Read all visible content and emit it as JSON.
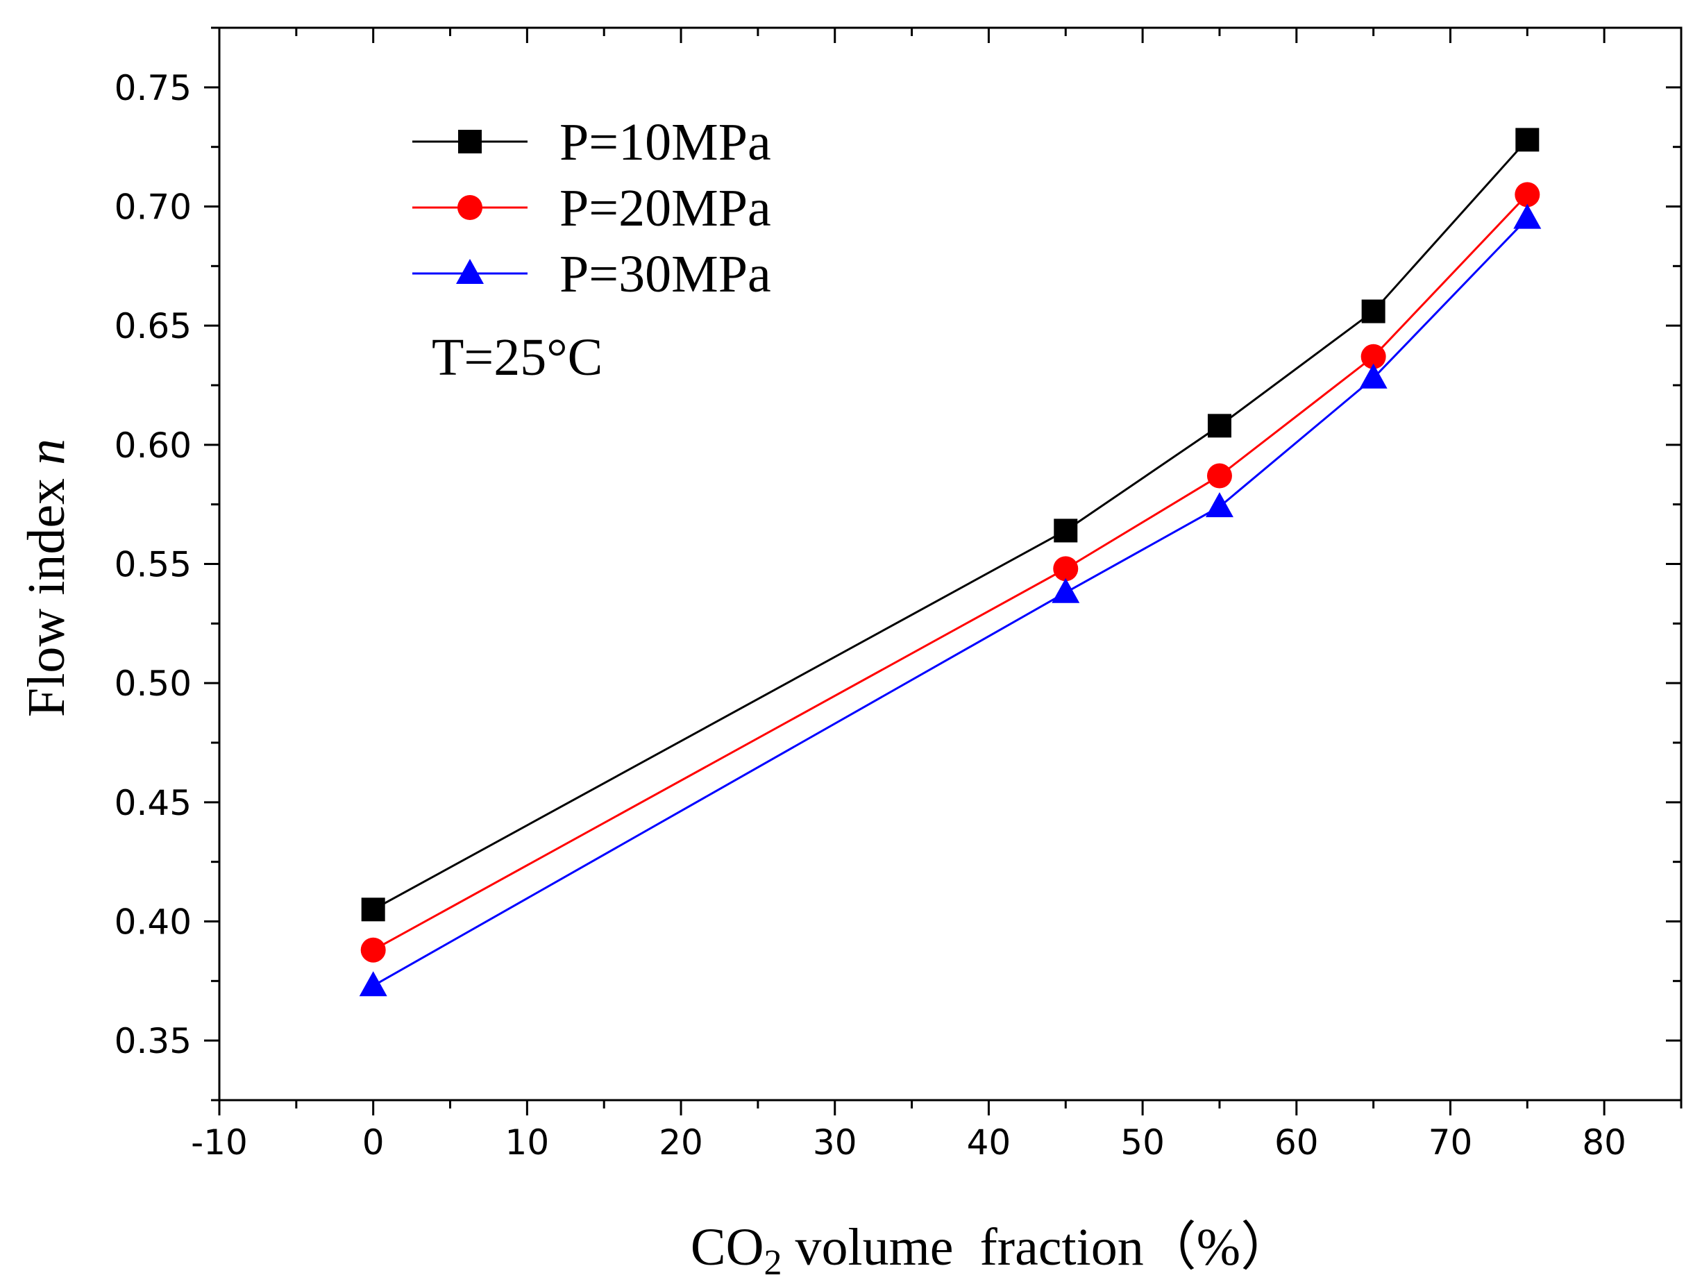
{
  "chart_data": {
    "type": "line",
    "title": "",
    "xlabel": {
      "prefix": "CO",
      "subscript": "2",
      "suffix": " volume  fraction",
      "unit": "（%）"
    },
    "ylabel": {
      "text": "Flow index ",
      "var": "n"
    },
    "xlim": [
      -10,
      85
    ],
    "ylim": [
      0.325,
      0.775
    ],
    "x_ticks": [
      -10,
      0,
      10,
      20,
      30,
      40,
      50,
      60,
      70,
      80
    ],
    "x_tick_labels": [
      "-10",
      "0",
      "10",
      "20",
      "30",
      "40",
      "50",
      "60",
      "70",
      "80"
    ],
    "y_ticks": [
      0.35,
      0.4,
      0.45,
      0.5,
      0.55,
      0.6,
      0.65,
      0.7,
      0.75
    ],
    "y_tick_labels": [
      "0.35",
      "0.40",
      "0.45",
      "0.50",
      "0.55",
      "0.60",
      "0.65",
      "0.70",
      "0.75"
    ],
    "grid": false,
    "legend_position": "top-left",
    "x": [
      0,
      45,
      55,
      65,
      75
    ],
    "series": [
      {
        "name": "P=10MPa",
        "marker": "square",
        "color": "#000000",
        "values": [
          0.405,
          0.564,
          0.608,
          0.656,
          0.728
        ]
      },
      {
        "name": "P=20MPa",
        "marker": "circle",
        "color": "#ff0000",
        "values": [
          0.388,
          0.548,
          0.587,
          0.637,
          0.705
        ]
      },
      {
        "name": "P=30MPa",
        "marker": "triangle",
        "color": "#0000ff",
        "values": [
          0.373,
          0.538,
          0.574,
          0.628,
          0.695
        ]
      }
    ],
    "annotations": [
      {
        "text": "T=25°C"
      }
    ]
  }
}
